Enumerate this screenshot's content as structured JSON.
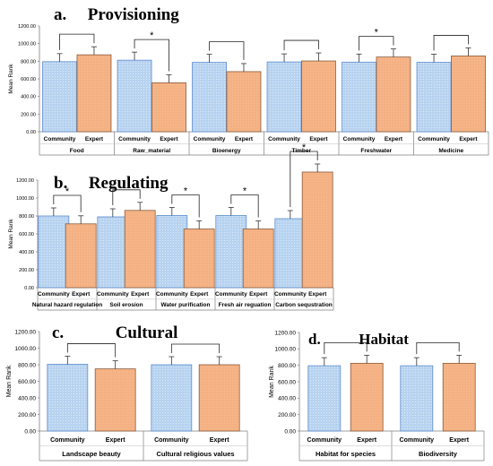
{
  "colors": {
    "community": "#b7d3f0",
    "community_stroke": "#5b8bd0",
    "expert": "#f4b183",
    "expert_stroke": "#8a5a3a",
    "significance": "#e02020"
  },
  "chart_data": [
    {
      "type": "bar",
      "letter": "a.",
      "title": "Provisioning",
      "ylabel": "Mean Rank",
      "ylim": [
        0,
        1200
      ],
      "yticks": [
        "0.00",
        "200.00",
        "400.00",
        "600.00",
        "800.00",
        "1000.00",
        "1200.00"
      ],
      "grid": false,
      "categories": [
        "Food",
        "Raw_material",
        "Bioenergy",
        "Timber",
        "Freshwater",
        "Medicine"
      ],
      "bar_labels": [
        "Community",
        "Expert"
      ],
      "series": [
        {
          "name": "Community",
          "values": [
            795,
            812,
            787,
            792,
            790,
            788
          ]
        },
        {
          "name": "Expert",
          "values": [
            873,
            555,
            682,
            803,
            848,
            860
          ]
        }
      ],
      "significant": [
        false,
        true,
        false,
        false,
        true,
        false
      ]
    },
    {
      "type": "bar",
      "letter": "b.",
      "title": "Regulating",
      "ylabel": "Mean Rank",
      "ylim": [
        0,
        1200
      ],
      "yticks": [
        "0.00",
        "200.00",
        "400.00",
        "600.00",
        "800.00",
        "1000.00",
        "1200.00"
      ],
      "grid": false,
      "categories": [
        "Natural hazard regulation",
        "Soil erosion",
        "Water purification",
        "Fresh air reguation",
        "Carbon sequstration"
      ],
      "bar_labels": [
        "Community",
        "Expert"
      ],
      "series": [
        {
          "name": "Community",
          "values": [
            800,
            790,
            805,
            805,
            770
          ]
        },
        {
          "name": "Expert",
          "values": [
            712,
            862,
            655,
            655,
            1290
          ]
        }
      ],
      "significant": [
        true,
        false,
        true,
        true,
        true
      ]
    },
    {
      "type": "bar",
      "letter": "c.",
      "title": "Cultural",
      "ylabel": "Mean Rank",
      "ylim": [
        0,
        1200
      ],
      "yticks": [
        "0.00",
        "200.00",
        "400.00",
        "600.00",
        "800.00",
        "1000.00",
        "1200.00"
      ],
      "grid": false,
      "categories": [
        "Landscape beauty",
        "Cultural religious values"
      ],
      "bar_labels": [
        "Community",
        "Expert"
      ],
      "series": [
        {
          "name": "Community",
          "values": [
            805,
            800
          ]
        },
        {
          "name": "Expert",
          "values": [
            750,
            800
          ]
        }
      ],
      "significant": [
        false,
        false
      ]
    },
    {
      "type": "bar",
      "letter": "d.",
      "title": "Habitat",
      "ylabel": "Mean Rank",
      "ylim": [
        0,
        1200
      ],
      "yticks": [
        "0.00",
        "200.00",
        "400.00",
        "600.00",
        "800.00",
        "1000.00",
        "1200.00"
      ],
      "grid": false,
      "categories": [
        "Habitat for species",
        "Biodiversity"
      ],
      "bar_labels": [
        "Community",
        "Expert"
      ],
      "series": [
        {
          "name": "Community",
          "values": [
            795,
            795
          ]
        },
        {
          "name": "Expert",
          "values": [
            825,
            825
          ]
        }
      ],
      "significant": [
        false,
        false
      ]
    }
  ]
}
